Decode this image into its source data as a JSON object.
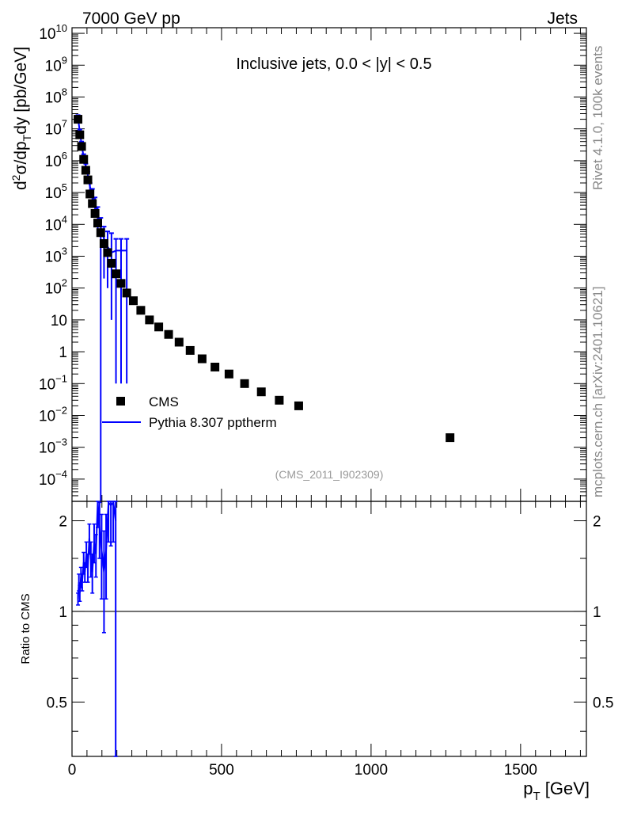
{
  "header": {
    "left": "7000 GeV pp",
    "right": "Jets"
  },
  "side_labels": {
    "rivet": "Rivet 4.1.0,  100k events",
    "mcplots": "mcplots.cern.ch [arXiv:2401.10621]"
  },
  "colors": {
    "data": "#000000",
    "mc": "#0000ff",
    "analysis_id": "#999999",
    "side_text": "#888888"
  },
  "chart_data": [
    {
      "panel": "main",
      "type": "scatter",
      "title": "Inclusive jets, 0.0 < |y| < 0.5",
      "analysis_id": "(CMS_2011_I902309)",
      "ylabel": "d2σ/dpT dy [pb/GeV]",
      "xlabel": "",
      "xlim": [
        0,
        1720
      ],
      "ylim": [
        2e-05,
        15000000000.0
      ],
      "yscale": "log",
      "x_ticks": [
        0,
        500,
        1000,
        1500
      ],
      "y_ticks": [
        {
          "v": 0.0001,
          "m": "10",
          "e": "−4"
        },
        {
          "v": 0.001,
          "m": "10",
          "e": "−3"
        },
        {
          "v": 0.01,
          "m": "10",
          "e": "−2"
        },
        {
          "v": 0.1,
          "m": "10",
          "e": "−1"
        },
        {
          "v": 1,
          "m": "1",
          "e": ""
        },
        {
          "v": 10,
          "m": "10",
          "e": ""
        },
        {
          "v": 100,
          "m": "10",
          "e": "2"
        },
        {
          "v": 1000,
          "m": "10",
          "e": "3"
        },
        {
          "v": 10000,
          "m": "10",
          "e": "4"
        },
        {
          "v": 100000,
          "m": "10",
          "e": "5"
        },
        {
          "v": 1000000,
          "m": "10",
          "e": "6"
        },
        {
          "v": 10000000,
          "m": "10",
          "e": "7"
        },
        {
          "v": 100000000,
          "m": "10",
          "e": "8"
        },
        {
          "v": 1000000000,
          "m": "10",
          "e": "9"
        },
        {
          "v": 10000000000,
          "m": "10",
          "e": "10"
        }
      ],
      "legend_position": "lower-left",
      "series": [
        {
          "name": "CMS",
          "style": "markers",
          "x": [
            20,
            26,
            32,
            39,
            46,
            53,
            60,
            68,
            77,
            86,
            96,
            107,
            119,
            132,
            147,
            164,
            183,
            205,
            230,
            259,
            290,
            323,
            358,
            395,
            435,
            478,
            525,
            577,
            633,
            693,
            758,
            1264
          ],
          "y": [
            20000000.0,
            6500000.0,
            2800000.0,
            1100000.0,
            500000.0,
            250000.0,
            90000.0,
            45000.0,
            22000.0,
            11000.0,
            5500.0,
            2500.0,
            1300.0,
            600,
            280,
            140,
            70,
            40,
            20,
            10,
            6,
            3.5,
            2.0,
            1.1,
            0.6,
            0.33,
            0.2,
            0.1,
            0.055,
            0.03,
            0.02,
            0.002
          ]
        },
        {
          "name": "Pythia 8.307 pptherm",
          "style": "line",
          "x": [
            20,
            26,
            32,
            39,
            46,
            53,
            60,
            68,
            77,
            86,
            96,
            107,
            119,
            132,
            147,
            164,
            183
          ],
          "y": [
            23000000.0,
            8000000.0,
            3300000.0,
            1300000.0,
            650000.0,
            350000.0,
            150000.0,
            90000.0,
            45000.0,
            20000.0,
            8000.0,
            3500.0,
            2000.0,
            1300.0,
            1500.0,
            1500.0,
            1500.0
          ],
          "y_err_up": [
            4000000.0,
            1500000.0,
            700000.0,
            300000.0,
            150000.0,
            100000.0,
            50000.0,
            40000.0,
            25000.0,
            15000.0,
            8000.0,
            5000.0,
            4000.0,
            4000.0,
            2000.0,
            2000.0,
            2000.0
          ],
          "y_err_down": [
            4000000.0,
            1500000.0,
            700000.0,
            300000.0,
            150000.0,
            100000.0,
            50000.0,
            40000.0,
            25000.0,
            15000.0,
            8000.0,
            3300.0,
            1900.0,
            1290.0,
            1499.9,
            1499.9,
            1499.9
          ]
        }
      ]
    },
    {
      "panel": "ratio",
      "type": "line",
      "ylabel": "Ratio to CMS",
      "xlabel": "pT [GeV]",
      "xlim": [
        0,
        1720
      ],
      "ylim": [
        0.33,
        2.32
      ],
      "yscale": "log",
      "y_ticks": [
        0.5,
        1,
        2
      ],
      "x_ticks": [
        0,
        500,
        1000,
        1500
      ],
      "reference_line": 1,
      "series": [
        {
          "name": "Pythia 8.307 pptherm / CMS",
          "x": [
            20,
            23,
            26,
            30,
            34,
            39,
            43,
            48,
            53,
            58,
            63,
            68,
            74,
            80,
            86,
            92,
            99,
            107,
            114,
            122,
            130,
            138,
            146
          ],
          "y": [
            1.1,
            1.25,
            1.15,
            1.3,
            1.25,
            1.45,
            1.35,
            1.55,
            1.4,
            1.75,
            1.5,
            1.35,
            1.7,
            1.55,
            2.3,
            1.9,
            1.6,
            1.35,
            1.6,
            2.3,
            2.25,
            2.3,
            2.0
          ],
          "y_err": [
            0.05,
            0.08,
            0.07,
            0.1,
            0.08,
            0.12,
            0.1,
            0.15,
            0.15,
            0.2,
            0.2,
            0.2,
            0.25,
            0.25,
            0.4,
            0.4,
            0.5,
            0.5,
            0.5,
            0.6,
            0.6,
            0.6,
            1.7
          ]
        }
      ]
    }
  ]
}
